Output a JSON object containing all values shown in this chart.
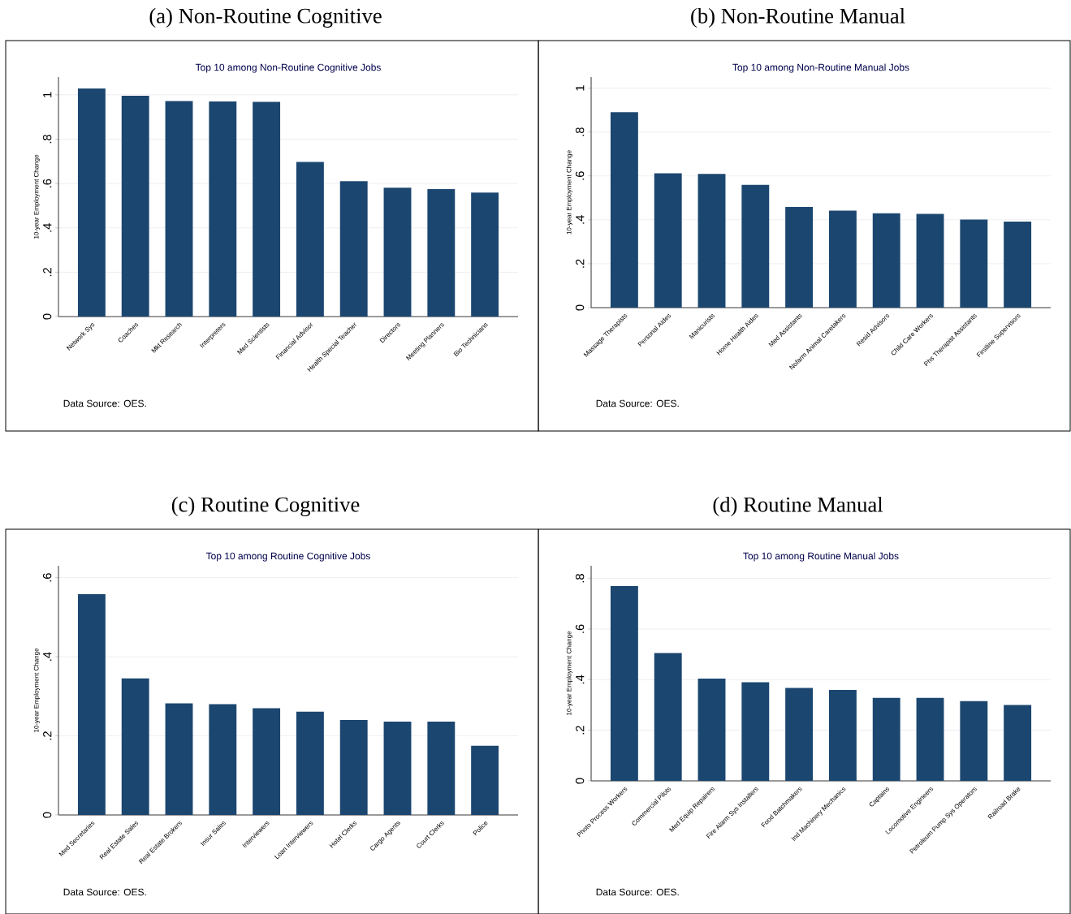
{
  "chart_data": [
    {
      "type": "bar",
      "title": "(a) Non-Routine Cognitive",
      "subtitle": "Top 10 among Non-Routine Cognitive Jobs",
      "ylabel": "10-year Employment Change",
      "color": "#1b4670",
      "grid": "y",
      "ylim": [
        0,
        1.08
      ],
      "yticks": [
        0,
        {
          "value": 0.2,
          "label": ".2"
        },
        {
          "value": 0.4,
          "label": ".4"
        },
        {
          "value": 0.6,
          "label": ".6"
        },
        {
          "value": 0.8,
          "label": ".8"
        },
        1
      ],
      "annotations": [
        "Data Source: OES."
      ],
      "categories": [
        "Network Sys",
        "Coaches",
        "Mkt Research",
        "Interpreters",
        "Med Scientists",
        "Financial Advisor",
        "Health Special Teacher",
        "Directors",
        "Meeting Planners",
        "Bio Technicians"
      ],
      "values": [
        1.029,
        0.996,
        0.972,
        0.97,
        0.968,
        0.697,
        0.61,
        0.581,
        0.575,
        0.559
      ]
    },
    {
      "type": "bar",
      "title": "(b) Non-Routine Manual",
      "subtitle": "Top 10 among Non-Routine Manual Jobs",
      "ylabel": "10-year Employment Change",
      "color": "#1b4670",
      "grid": "y",
      "ylim": [
        0,
        1.05
      ],
      "yticks": [
        0,
        {
          "value": 0.2,
          "label": ".2"
        },
        {
          "value": 0.4,
          "label": ".4"
        },
        {
          "value": 0.6,
          "label": ".6"
        },
        {
          "value": 0.8,
          "label": ".8"
        },
        1
      ],
      "annotations": [
        "Data Source: OES."
      ],
      "categories": [
        "Massage Therapists",
        "Personal Aides",
        "Manicurists",
        "Home Health Aides",
        "Med Assistants",
        "Nofarm Animal Caretakers",
        "Resid Advisors",
        "Child Care Workers",
        "Phs Therapist Assistants",
        "Firstline Supervisors"
      ],
      "values": [
        0.89,
        0.612,
        0.609,
        0.559,
        0.458,
        0.442,
        0.43,
        0.427,
        0.401,
        0.392
      ]
    },
    {
      "type": "bar",
      "title": "(c) Routine Cognitive",
      "subtitle": "Top 10 among Routine Cognitive Jobs",
      "ylabel": "10-year Employment Change",
      "color": "#1b4670",
      "grid": "y",
      "ylim": [
        0,
        0.63
      ],
      "yticks": [
        0,
        {
          "value": 0.2,
          "label": ".2"
        },
        {
          "value": 0.4,
          "label": ".4"
        },
        {
          "value": 0.6,
          "label": ".6"
        }
      ],
      "annotations": [
        "Data Source: OES."
      ],
      "categories": [
        "Med Secretaries",
        "Real Estate Sales",
        "Real Estate Brokers",
        "Insur Sales",
        "Interviewers",
        "Loan Interviewers",
        "Hotel Clerks",
        "Cargo Agents",
        "Court Clerks",
        "Police"
      ],
      "values": [
        0.558,
        0.345,
        0.282,
        0.28,
        0.27,
        0.261,
        0.24,
        0.236,
        0.236,
        0.175
      ]
    },
    {
      "type": "bar",
      "title": "(d) Routine Manual",
      "subtitle": "Top 10 among Routine Manual Jobs",
      "ylabel": "10-year Employment Change",
      "color": "#1b4670",
      "grid": "y",
      "ylim": [
        0,
        0.85
      ],
      "yticks": [
        0,
        {
          "value": 0.2,
          "label": ".2"
        },
        {
          "value": 0.4,
          "label": ".4"
        },
        {
          "value": 0.6,
          "label": ".6"
        },
        {
          "value": 0.8,
          "label": ".8"
        }
      ],
      "annotations": [
        "Data Source: OES."
      ],
      "categories": [
        "Photo Process Workers",
        "Commercial Pilots",
        "Med Equip Repairers",
        "Fire Alarm Sys Installers",
        "Food Batchmakers",
        "Ind Machinery Mechanics",
        "Captains",
        "Locomotive Engineers",
        "Petroleum Pump Sys Operators",
        "Railroad Brake"
      ],
      "values": [
        0.77,
        0.505,
        0.404,
        0.39,
        0.367,
        0.359,
        0.328,
        0.328,
        0.315,
        0.3
      ]
    }
  ]
}
